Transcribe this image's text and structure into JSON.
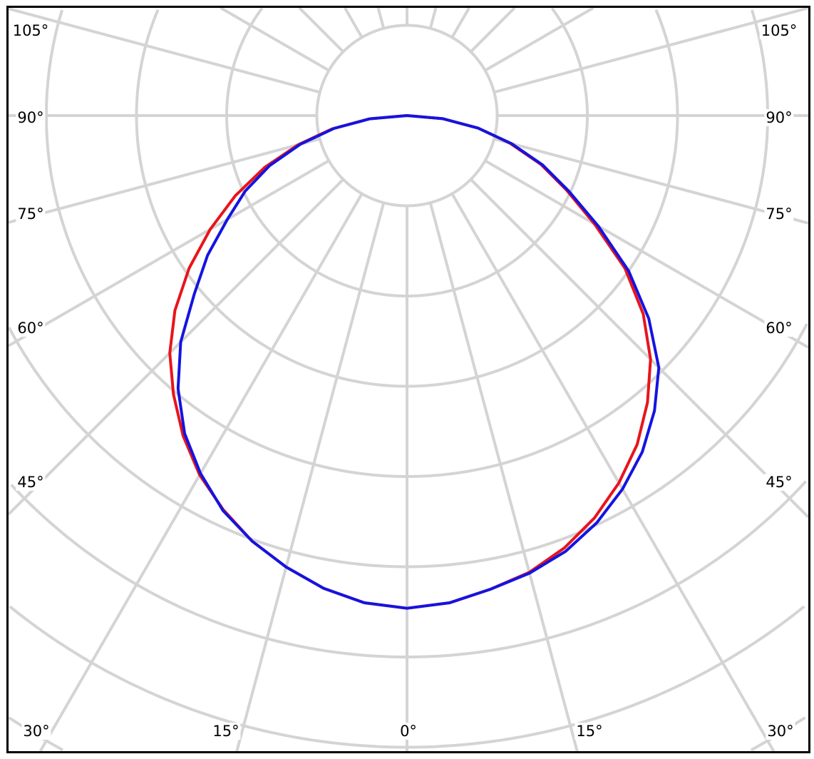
{
  "chart_data": {
    "type": "polar-line",
    "title": "",
    "angle_labels_left": [
      "105°",
      "90°",
      "75°",
      "60°",
      "45°"
    ],
    "angle_labels_right": [
      "105°",
      "90°",
      "75°",
      "60°",
      "45°"
    ],
    "angle_labels_bottom": [
      "30°",
      "15°",
      "0°",
      "15°",
      "30°"
    ],
    "grid": true,
    "radial_grid_step_deg": 15,
    "ring_count": 8,
    "angles": [
      0,
      5,
      10,
      15,
      20,
      25,
      30,
      35,
      40,
      45,
      50,
      55,
      60,
      65,
      70,
      75,
      80,
      85,
      90
    ],
    "series": [
      {
        "color": "#e8141b",
        "left": [
          5.46,
          5.42,
          5.32,
          5.18,
          5.02,
          4.82,
          4.6,
          4.33,
          4.03,
          3.72,
          3.36,
          2.95,
          2.52,
          2.1,
          1.68,
          1.25,
          0.84,
          0.42,
          0
        ],
        "right": [
          5.46,
          5.42,
          5.33,
          5.24,
          5.1,
          4.92,
          4.7,
          4.45,
          4.15,
          3.82,
          3.42,
          2.95,
          2.4,
          1.95,
          1.58,
          1.18,
          0.8,
          0.4,
          0
        ]
      },
      {
        "color": "#1414e0",
        "left": [
          5.46,
          5.42,
          5.32,
          5.18,
          5.02,
          4.83,
          4.58,
          4.3,
          3.95,
          3.55,
          3.08,
          2.7,
          2.3,
          1.98,
          1.62,
          1.22,
          0.82,
          0.41,
          0
        ],
        "right": [
          5.46,
          5.42,
          5.33,
          5.25,
          5.14,
          4.98,
          4.78,
          4.55,
          4.27,
          3.95,
          3.5,
          3.0,
          2.45,
          1.98,
          1.6,
          1.2,
          0.8,
          0.4,
          0
        ]
      }
    ]
  }
}
